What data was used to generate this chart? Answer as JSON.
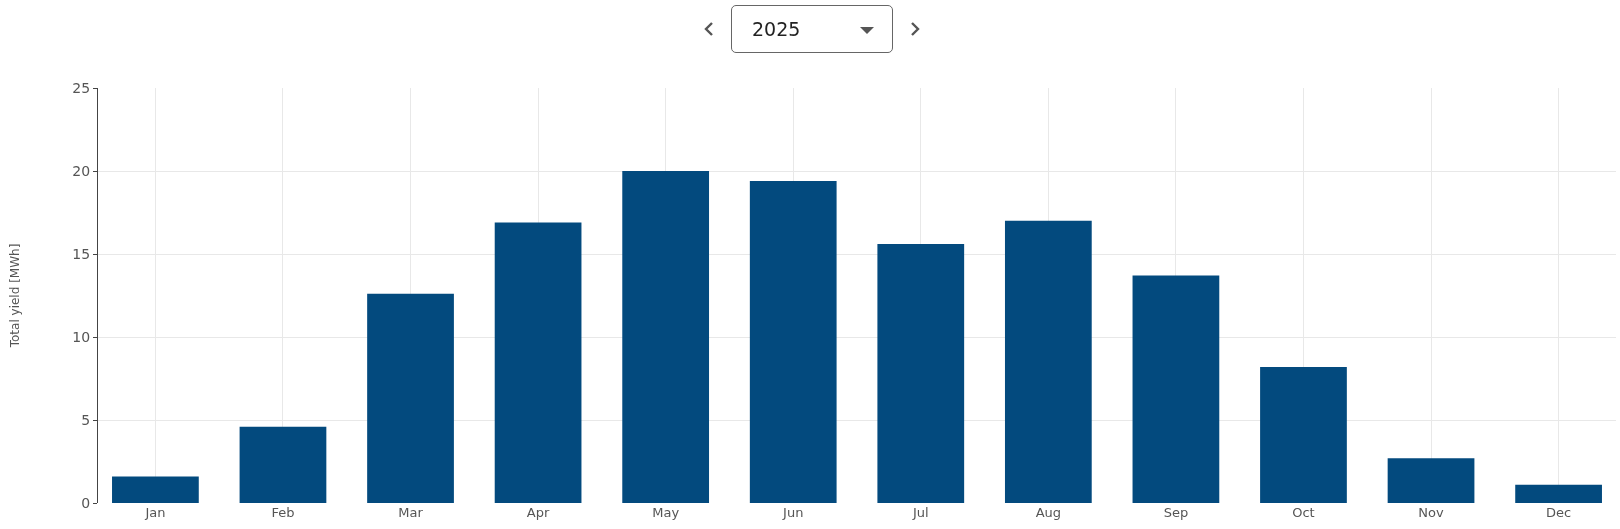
{
  "chart_data": {
    "type": "bar",
    "title": "2025",
    "ylabel": "Total yield [MWh]",
    "categories": [
      "Jan",
      "Feb",
      "Mar",
      "Apr",
      "May",
      "Jun",
      "Jul",
      "Aug",
      "Sep",
      "Oct",
      "Nov",
      "Dec"
    ],
    "values": [
      1.6,
      4.6,
      12.6,
      16.9,
      20.0,
      19.4,
      15.6,
      17.0,
      13.7,
      8.2,
      2.7,
      1.1
    ],
    "color": "#034a7e",
    "ylim": [
      0,
      25
    ],
    "yticks": [
      0,
      5,
      10,
      15,
      20,
      25
    ],
    "grid": true,
    "legend": false
  }
}
